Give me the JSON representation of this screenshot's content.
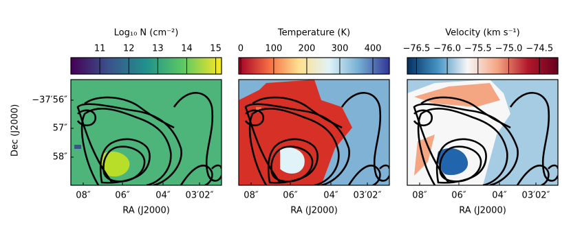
{
  "chart_data": [
    {
      "type": "heatmap",
      "colorbar_label": "Log₁₀ N (cm⁻²)",
      "clim": [
        10.0,
        15.2
      ],
      "cticks": [
        11,
        12,
        13,
        14,
        15
      ],
      "colormap": [
        "#440154",
        "#3b528b",
        "#21918c",
        "#5ec962",
        "#fde725"
      ],
      "xtick_labels": [
        "08″",
        "06″",
        "04″",
        "03′02″"
      ],
      "xlabel": "RA (J2000)",
      "ylabel": "Dec (J2000)",
      "ytick_labels": [
        "−37′56″",
        "57″",
        "58″"
      ]
    },
    {
      "type": "heatmap",
      "colorbar_label": "Temperature (K)",
      "clim": [
        -6,
        450
      ],
      "cticks": [
        0,
        100,
        200,
        300,
        400
      ],
      "colormap": [
        "#a50026",
        "#f46d43",
        "#fee090",
        "#e0f3f8",
        "#74add1",
        "#313695"
      ],
      "xtick_labels": [
        "08″",
        "06″",
        "04″",
        "03′02″"
      ],
      "xlabel": "RA (J2000)"
    },
    {
      "type": "heatmap",
      "colorbar_label": "Velocity (km s⁻¹)",
      "clim": [
        -76.65,
        -74.2
      ],
      "cticks": [
        {
          "value": -76.5,
          "label": "−76.5"
        },
        {
          "value": -76.0,
          "label": "−76.0"
        },
        {
          "value": -75.5,
          "label": "−75.5"
        },
        {
          "value": -75.0,
          "label": "−75.0"
        },
        {
          "value": -74.5,
          "label": "−74.5"
        }
      ],
      "colormap": [
        "#053061",
        "#4393c3",
        "#f7f7f7",
        "#f4a582",
        "#b2182b",
        "#67001f"
      ],
      "xtick_labels": [
        "08″",
        "06″",
        "04″",
        "03′02″"
      ],
      "xlabel": "RA (J2000)"
    }
  ]
}
